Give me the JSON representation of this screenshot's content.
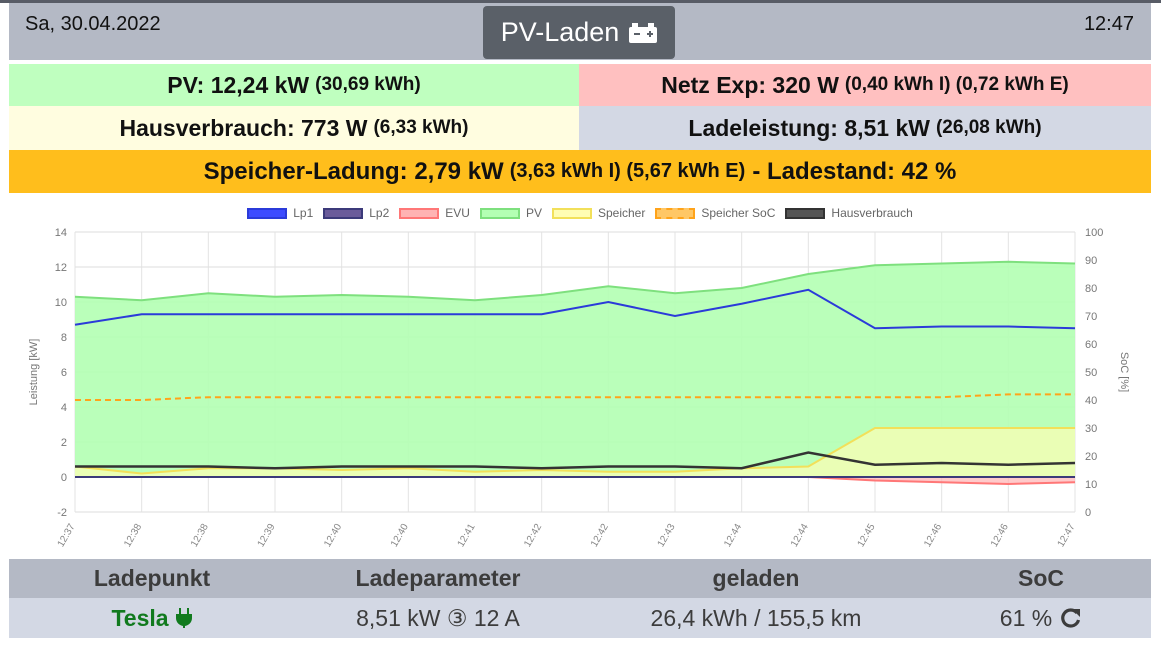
{
  "header": {
    "date": "Sa, 30.04.2022",
    "time": "12:47",
    "title": "PV-Laden",
    "title_icon": "car-battery-icon"
  },
  "summary": {
    "pv": {
      "label": "PV: 12,24 kW",
      "detail": "(30,69 kWh)"
    },
    "netz": {
      "label": "Netz Exp: 320 W",
      "detail": "(0,40 kWh I) (0,72 kWh E)"
    },
    "haus": {
      "label": "Hausverbrauch: 773 W",
      "detail": "(6,33 kWh)"
    },
    "lade": {
      "label": "Ladeleistung: 8,51 kW",
      "detail": "(26,08 kWh)"
    },
    "speicher": {
      "label": "Speicher-Ladung: 2,79 kW",
      "detail": "(3,63 kWh I) (5,67 kWh E)",
      "suffix": "- Ladestand: 42 %"
    }
  },
  "colors": {
    "pv_bg": "#bfffbf",
    "netz_bg": "#ffc0c0",
    "haus_bg": "#fffde0",
    "lade_bg": "#d3d8e4",
    "speicher_bg": "#ffbe1c",
    "header_bg": "#b4b9c5"
  },
  "chart_data": {
    "type": "line",
    "xlabel": "",
    "ylabel": "Leistung [kW]",
    "y2label": "SoC [%]",
    "ylim": [
      -2,
      14
    ],
    "y2lim": [
      0,
      100
    ],
    "grid": true,
    "legend_position": "top",
    "x": [
      "12:37",
      "12:38",
      "12:38",
      "12:39",
      "12:40",
      "12:40",
      "12:41",
      "12:42",
      "12:42",
      "12:43",
      "12:44",
      "12:44",
      "12:45",
      "12:46",
      "12:46",
      "12:47"
    ],
    "series": [
      {
        "name": "Lp1",
        "color": "#2b3bd9",
        "fill": "#3d4cff",
        "values": [
          8.7,
          9.3,
          9.3,
          9.3,
          9.3,
          9.3,
          9.3,
          9.3,
          10.0,
          9.2,
          9.9,
          10.7,
          8.5,
          8.6,
          8.6,
          8.5
        ]
      },
      {
        "name": "Lp2",
        "color": "#3c3a7a",
        "fill": "#6a5b9a",
        "values": [
          0,
          0,
          0,
          0,
          0,
          0,
          0,
          0,
          0,
          0,
          0,
          0,
          0,
          0,
          0,
          0
        ]
      },
      {
        "name": "EVU",
        "color": "#ff7777",
        "fill": "#ffb3b3",
        "values": [
          0,
          0,
          0,
          0,
          0,
          0,
          0,
          0,
          0,
          0,
          0,
          0,
          -0.2,
          -0.3,
          -0.4,
          -0.3
        ]
      },
      {
        "name": "PV",
        "color": "#7ee07e",
        "fill": "#b3ffb3",
        "values": [
          10.3,
          10.1,
          10.5,
          10.3,
          10.4,
          10.3,
          10.1,
          10.4,
          10.9,
          10.5,
          10.8,
          11.6,
          12.1,
          12.2,
          12.3,
          12.2
        ]
      },
      {
        "name": "Speicher",
        "color": "#f2e05a",
        "fill": "#fffdb3",
        "values": [
          0.6,
          0.2,
          0.5,
          0.5,
          0.4,
          0.5,
          0.3,
          0.4,
          0.3,
          0.3,
          0.5,
          0.6,
          2.8,
          2.8,
          2.8,
          2.8
        ]
      },
      {
        "name": "Speicher SoC",
        "color": "#ffa31a",
        "fill": "#ffc766",
        "axis": "right",
        "values": [
          40,
          40,
          41,
          41,
          41,
          41,
          41,
          41,
          41,
          41,
          41,
          41,
          41,
          41,
          42,
          42
        ]
      },
      {
        "name": "Hausverbrauch",
        "color": "#333333",
        "fill": "#555555",
        "values": [
          0.6,
          0.6,
          0.6,
          0.5,
          0.6,
          0.6,
          0.6,
          0.5,
          0.6,
          0.6,
          0.5,
          1.4,
          0.7,
          0.8,
          0.7,
          0.8
        ]
      }
    ],
    "ytick_labels": [
      "-2",
      "0",
      "2",
      "4",
      "6",
      "8",
      "10",
      "12",
      "14"
    ],
    "y2tick_labels": [
      "0",
      "10",
      "20",
      "30",
      "40",
      "50",
      "60",
      "70",
      "80",
      "90",
      "100"
    ]
  },
  "table": {
    "headers": [
      "Ladepunkt",
      "Ladeparameter",
      "geladen",
      "SoC"
    ],
    "row": {
      "ladepunkt": "Tesla",
      "ladepunkt_icon": "plug-icon",
      "parameter": "8,51 kW ③ 12 A",
      "geladen": "26,4 kWh / 155,5 km",
      "soc": "61 %",
      "soc_icon": "refresh-icon"
    }
  }
}
